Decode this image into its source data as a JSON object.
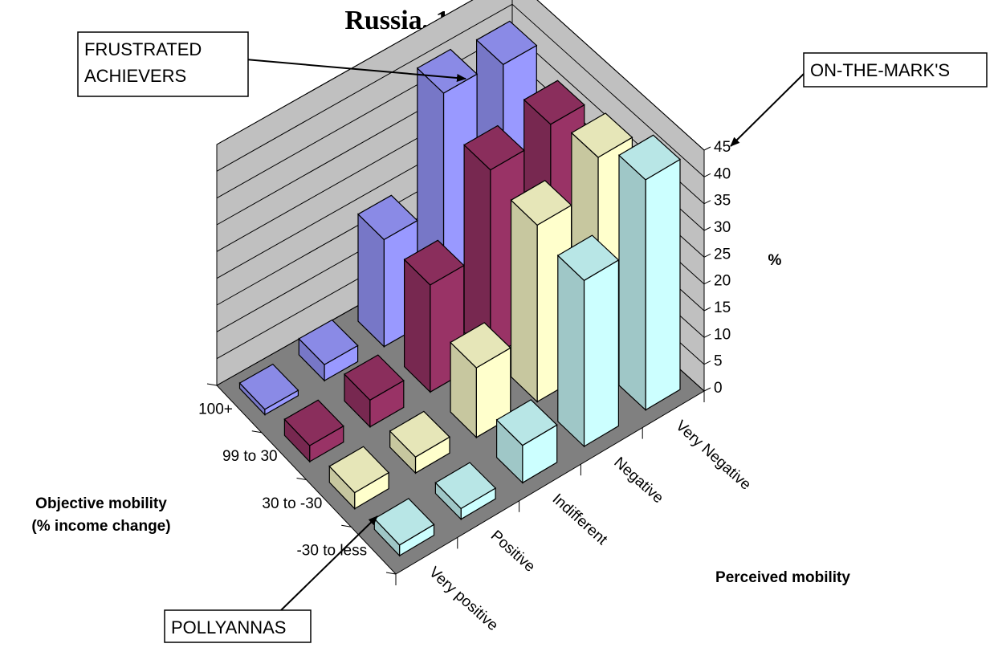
{
  "chart_data": {
    "type": "bar3d",
    "title": "Russia, 1995",
    "zlabel": "%",
    "xlabel": "Perceived mobility",
    "ylabel_lines": [
      "Objective mobility",
      "(% income change)"
    ],
    "zlim": [
      0,
      45
    ],
    "zticks": [
      0,
      5,
      10,
      15,
      20,
      25,
      30,
      35,
      40,
      45
    ],
    "perceived": [
      "Very positive",
      "Positive",
      "Indifferent",
      "Negative",
      "Very Negative"
    ],
    "objective": [
      "100+",
      "99 to 30",
      "30 to -30",
      "-30 to less"
    ],
    "series": [
      {
        "name": "100+",
        "color": "#9999ff",
        "values": [
          1,
          3,
          20,
          41,
          40
        ]
      },
      {
        "name": "99 to 30",
        "color": "#993366",
        "values": [
          3,
          5,
          20,
          35,
          37
        ]
      },
      {
        "name": "30 to -30",
        "color": "#ffffcc",
        "values": [
          3,
          3,
          13,
          33,
          39
        ]
      },
      {
        "name": "-30 to less",
        "color": "#ccffff",
        "values": [
          2,
          2,
          7,
          31,
          43
        ]
      }
    ],
    "annotations": [
      {
        "key": "frustrated",
        "lines": [
          "FRUSTRATED",
          "ACHIEVERS"
        ]
      },
      {
        "key": "onthemark",
        "lines": [
          "ON-THE-MARK'S"
        ]
      },
      {
        "key": "pollyannas",
        "lines": [
          "POLLYANNAS"
        ]
      }
    ]
  }
}
